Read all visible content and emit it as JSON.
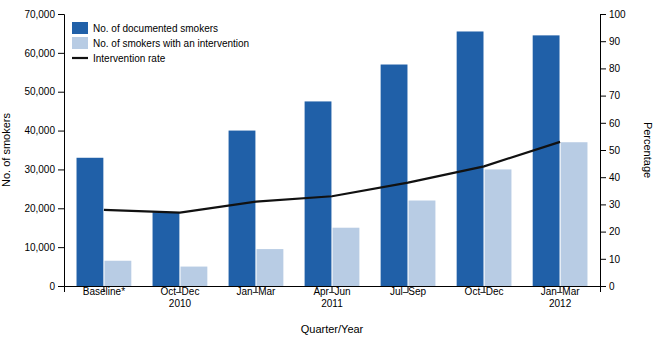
{
  "chart_data": {
    "type": "bar",
    "categories": [
      "Baseline*",
      "Oct–Dec\n2010",
      "Jan–Mar",
      "Apr–Jun\n2011",
      "Jul–Sep",
      "Oct–Dec",
      "Jan–Mar\n2012"
    ],
    "series": [
      {
        "name": "No. of documented smokers",
        "type": "bar",
        "color": "#2060A8",
        "values": [
          33000,
          19000,
          40000,
          47500,
          57000,
          65500,
          64500
        ]
      },
      {
        "name": "No. of smokers with an intervention",
        "type": "bar",
        "color": "#B8CCE4",
        "values": [
          6500,
          5000,
          9500,
          15000,
          22000,
          30000,
          37000
        ]
      },
      {
        "name": "Intervention rate",
        "type": "line",
        "axis": "y2",
        "color": "#111111",
        "values": [
          28,
          27,
          31,
          33,
          38,
          44,
          53
        ]
      }
    ],
    "xlabel": "Quarter/Year",
    "ylabel": "No. of smokers",
    "y2label": "Percentage",
    "ylim": [
      0,
      70000
    ],
    "yticks": [
      0,
      {
        "value": 10000,
        "label": "10,000"
      },
      {
        "value": 20000,
        "label": "20,000"
      },
      {
        "value": 30000,
        "label": "30,000"
      },
      {
        "value": 40000,
        "label": "40,000"
      },
      {
        "value": 50000,
        "label": "50,000"
      },
      {
        "value": 60000,
        "label": "60,000"
      },
      {
        "value": 70000,
        "label": "70,000"
      }
    ],
    "y2lim": [
      0,
      100
    ],
    "y2ticks": [
      0,
      10,
      20,
      30,
      40,
      50,
      60,
      70,
      80,
      90,
      100
    ],
    "grid": false,
    "legend": "upper-left"
  }
}
